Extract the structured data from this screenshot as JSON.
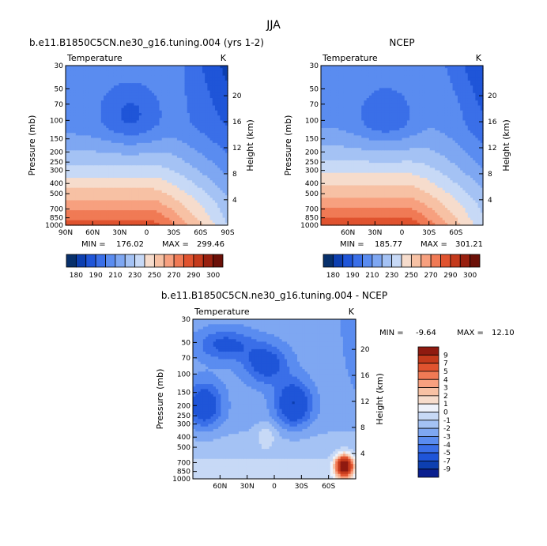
{
  "figure": {
    "supertitle": "JJA",
    "stats_label_min": "MIN =",
    "stats_label_max": "MAX =",
    "colors": {
      "temperature_levels": [
        "#08306b",
        "#0d3fb0",
        "#1f55d8",
        "#3a6fe8",
        "#5a8cf0",
        "#7ea7f2",
        "#a4c2f4",
        "#c7d9f6",
        "#f6dccc",
        "#f7c1a4",
        "#f7a07f",
        "#f07a55",
        "#e0532f",
        "#c43a1c",
        "#98200f",
        "#6b1008"
      ],
      "difference_levels": [
        "#0a1f8f",
        "#0d3fb0",
        "#1f55d8",
        "#3a6fe8",
        "#5a8cf0",
        "#7ea7f2",
        "#a4c2f4",
        "#c7d9f6",
        "#eef2fb",
        "#f6dccc",
        "#f7c1a4",
        "#f7a07f",
        "#f07a55",
        "#e0532f",
        "#c43a1c",
        "#8f1a10"
      ]
    }
  },
  "chart_data": [
    {
      "type": "heatmap",
      "title": "b.e11.B1850C5CN.ne30_g16.tuning.004 (yrs 1-2)",
      "left_label": "Temperature",
      "right_label": "K",
      "xlabel": "",
      "ylabel": "Pressure (mb)",
      "y2label": "Height (km)",
      "x_ticks": [
        "90N",
        "60N",
        "30N",
        "0",
        "30S",
        "60S",
        "90S"
      ],
      "y_ticks": [
        "30",
        "50",
        "70",
        "100",
        "150",
        "200",
        "250",
        "300",
        "400",
        "500",
        "700",
        "850",
        "1000"
      ],
      "y2_ticks": [
        "20",
        "16",
        "12",
        "8",
        "4"
      ],
      "min": "176.02",
      "max": "299.46",
      "colorbar_ticks": [
        "180",
        "190",
        "210",
        "230",
        "250",
        "270",
        "290",
        "300"
      ]
    },
    {
      "type": "heatmap",
      "title": "NCEP",
      "left_label": "Temperature",
      "right_label": "K",
      "xlabel": "",
      "ylabel": "Pressure (mb)",
      "y2label": "Height (km)",
      "x_ticks": [
        "60N",
        "30N",
        "0",
        "30S",
        "60S"
      ],
      "y_ticks": [
        "30",
        "50",
        "70",
        "100",
        "150",
        "200",
        "250",
        "300",
        "400",
        "500",
        "700",
        "850",
        "1000"
      ],
      "y2_ticks": [
        "20",
        "16",
        "12",
        "8",
        "4"
      ],
      "min": "185.77",
      "max": "301.21",
      "colorbar_ticks": [
        "180",
        "190",
        "210",
        "230",
        "250",
        "270",
        "290",
        "300"
      ]
    },
    {
      "type": "heatmap",
      "title": "b.e11.B1850C5CN.ne30_g16.tuning.004 - NCEP",
      "left_label": "Temperature",
      "right_label": "K",
      "xlabel": "",
      "ylabel": "Pressure (mb)",
      "y2label": "Height (km)",
      "x_ticks": [
        "60N",
        "30N",
        "0",
        "30S",
        "60S"
      ],
      "y_ticks": [
        "30",
        "50",
        "70",
        "100",
        "150",
        "200",
        "250",
        "300",
        "400",
        "500",
        "700",
        "850",
        "1000"
      ],
      "y2_ticks": [
        "20",
        "16",
        "12",
        "8",
        "4"
      ],
      "min": "-9.64",
      "max": "12.10",
      "colorbar_ticks": [
        "9",
        "7",
        "5",
        "4",
        "3",
        "2",
        "1",
        "0",
        "-1",
        "-2",
        "-3",
        "-4",
        "-5",
        "-7",
        "-9"
      ]
    }
  ]
}
